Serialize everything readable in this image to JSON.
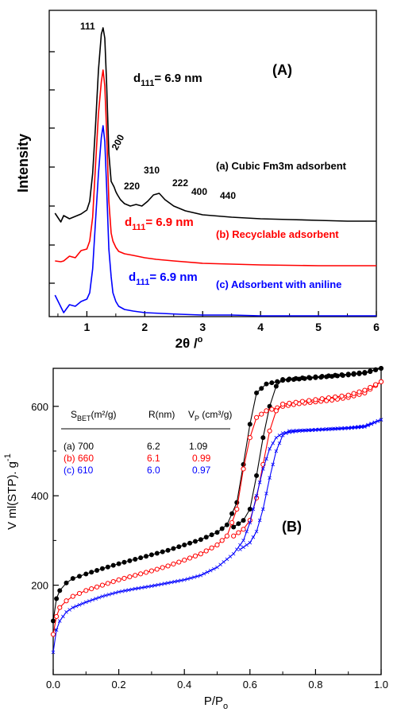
{
  "chart_data": [
    {
      "type": "line",
      "panel_label": "(A)",
      "xlabel": "2θ /",
      "xlabel_sup": "o",
      "ylabel": "Intensity",
      "xlim": [
        0.35,
        6
      ],
      "xticks": [
        "1",
        "2",
        "3",
        "4",
        "5",
        "6"
      ],
      "yaxis_tick_labels": false,
      "series": [
        {
          "name": "(a) Cubic Fm3m adsorbent",
          "color": "#000000",
          "x": [
            0.45,
            0.55,
            0.6,
            0.7,
            0.8,
            0.9,
            1.0,
            1.05,
            1.1,
            1.15,
            1.2,
            1.25,
            1.28,
            1.31,
            1.34,
            1.38,
            1.42,
            1.47,
            1.5,
            1.53,
            1.58,
            1.65,
            1.75,
            1.85,
            1.95,
            2.05,
            2.15,
            2.25,
            2.35,
            2.5,
            2.7,
            3.0,
            3.5,
            4.0,
            4.5,
            5.0,
            5.5,
            6.0
          ],
          "y": [
            255,
            266,
            258,
            262,
            259,
            256,
            251,
            240,
            205,
            145,
            75,
            30,
            22,
            35,
            90,
            180,
            215,
            222,
            228,
            232,
            238,
            243,
            246,
            244,
            246,
            240,
            232,
            230,
            238,
            246,
            252,
            257,
            260,
            262,
            263,
            264,
            265,
            265
          ]
        },
        {
          "name": "(b) Recyclable adsorbent",
          "color": "#ff0000",
          "x": [
            0.45,
            0.55,
            0.6,
            0.7,
            0.8,
            0.9,
            1.0,
            1.05,
            1.1,
            1.15,
            1.2,
            1.25,
            1.28,
            1.31,
            1.34,
            1.38,
            1.42,
            1.45,
            1.5,
            1.55,
            1.65,
            1.8,
            2.0,
            2.2,
            2.5,
            3.0,
            3.5,
            4.0,
            5.0,
            6.0
          ],
          "y": [
            315,
            316,
            315,
            309,
            311,
            302,
            300,
            290,
            260,
            195,
            130,
            90,
            75,
            95,
            150,
            240,
            280,
            290,
            298,
            303,
            306,
            308,
            311,
            313,
            315,
            318,
            319,
            320,
            321,
            321
          ]
        },
        {
          "name": "(c) Adsorbent with aniline",
          "color": "#0000ff",
          "x": [
            0.45,
            0.6,
            0.7,
            0.8,
            0.9,
            1.0,
            1.05,
            1.1,
            1.15,
            1.2,
            1.25,
            1.28,
            1.31,
            1.34,
            1.38,
            1.42,
            1.45,
            1.5,
            1.55,
            1.65,
            1.8,
            2.0,
            2.3,
            2.6,
            3.0,
            3.5,
            4.0,
            5.0,
            6.0
          ],
          "y": [
            358,
            380,
            370,
            372,
            366,
            363,
            355,
            325,
            265,
            205,
            160,
            145,
            165,
            220,
            300,
            335,
            355,
            366,
            372,
            376,
            378,
            380,
            381,
            382,
            383,
            383,
            384,
            384,
            384
          ]
        }
      ],
      "peak_labels": [
        "111",
        "200",
        "220",
        "310",
        "222",
        "400",
        "440"
      ],
      "d_annotations": [
        {
          "prefix": "d",
          "sub": "111",
          "suffix": "= 6.9 nm",
          "color": "#000000"
        },
        {
          "prefix": "d",
          "sub": "111",
          "suffix": "= 6.9 nm",
          "color": "#ff0000"
        },
        {
          "prefix": "d",
          "sub": "111",
          "suffix": "= 6.9 nm",
          "color": "#0000ff"
        }
      ]
    },
    {
      "type": "line",
      "panel_label": "(B)",
      "xlabel": "P/P",
      "xlabel_sub": "o",
      "ylabel": "V ml(STP). g",
      "ylabel_sup": "-1",
      "xlim": [
        0.0,
        1.0
      ],
      "ylim": [
        0,
        685
      ],
      "xticks": [
        "0.0",
        "0.2",
        "0.4",
        "0.6",
        "0.8",
        "1.0"
      ],
      "xtick_values": [
        0.0,
        0.2,
        0.4,
        0.6,
        0.8,
        1.0
      ],
      "yticks": [
        "200",
        "400",
        "600"
      ],
      "ytick_values": [
        200,
        400,
        600
      ],
      "series": [
        {
          "name": "(a)",
          "color": "#000000",
          "marker": "filled-circle",
          "branches": [
            {
              "x": [
                0.0,
                0.01,
                0.02,
                0.04,
                0.06,
                0.1,
                0.15,
                0.2,
                0.25,
                0.3,
                0.35,
                0.4,
                0.45,
                0.5,
                0.53,
                0.56,
                0.58,
                0.6,
                0.62,
                0.65,
                0.7,
                0.75,
                0.8,
                0.85,
                0.9,
                0.95,
                1.0
              ],
              "y": [
                120,
                170,
                188,
                205,
                215,
                225,
                237,
                248,
                258,
                268,
                278,
                290,
                302,
                318,
                335,
                385,
                470,
                560,
                630,
                650,
                658,
                661,
                664,
                667,
                670,
                674,
                685
              ]
            },
            {
              "x": [
                1.0,
                0.95,
                0.9,
                0.8,
                0.7,
                0.68,
                0.66,
                0.64,
                0.62,
                0.6,
                0.58,
                0.55
              ],
              "y": [
                685,
                676,
                672,
                666,
                660,
                645,
                600,
                530,
                445,
                370,
                345,
                330
              ]
            }
          ]
        },
        {
          "name": "(b)",
          "color": "#ff0000",
          "marker": "open-circle",
          "branches": [
            {
              "x": [
                0.0,
                0.01,
                0.02,
                0.04,
                0.06,
                0.1,
                0.15,
                0.2,
                0.25,
                0.3,
                0.35,
                0.4,
                0.45,
                0.5,
                0.53,
                0.56,
                0.58,
                0.6,
                0.62,
                0.65,
                0.7,
                0.75,
                0.8,
                0.85,
                0.9,
                0.95,
                1.0
              ],
              "y": [
                90,
                130,
                150,
                165,
                175,
                188,
                200,
                212,
                222,
                232,
                243,
                256,
                270,
                290,
                310,
                370,
                460,
                530,
                575,
                590,
                600,
                606,
                610,
                614,
                620,
                630,
                655
              ]
            },
            {
              "x": [
                1.0,
                0.95,
                0.9,
                0.8,
                0.7,
                0.68,
                0.66,
                0.64,
                0.62,
                0.6,
                0.58,
                0.55
              ],
              "y": [
                655,
                636,
                625,
                615,
                605,
                590,
                545,
                470,
                395,
                345,
                325,
                310
              ]
            }
          ]
        },
        {
          "name": "(c)",
          "color": "#0000ff",
          "marker": "cross",
          "branches": [
            {
              "x": [
                0.0,
                0.01,
                0.02,
                0.04,
                0.06,
                0.1,
                0.15,
                0.2,
                0.25,
                0.3,
                0.35,
                0.4,
                0.45,
                0.5,
                0.55,
                0.58,
                0.6,
                0.62,
                0.64,
                0.66,
                0.68,
                0.7,
                0.75,
                0.8,
                0.85,
                0.9,
                0.95,
                1.0
              ],
              "y": [
                50,
                100,
                120,
                140,
                150,
                162,
                175,
                185,
                192,
                198,
                205,
                212,
                222,
                240,
                270,
                300,
                340,
                400,
                460,
                505,
                530,
                540,
                545,
                547,
                549,
                551,
                554,
                570
              ]
            },
            {
              "x": [
                1.0,
                0.95,
                0.9,
                0.8,
                0.72,
                0.7,
                0.68,
                0.66,
                0.64,
                0.62,
                0.6,
                0.57
              ],
              "y": [
                570,
                556,
                552,
                548,
                545,
                535,
                500,
                440,
                370,
                320,
                295,
                280
              ]
            }
          ]
        }
      ],
      "table": {
        "headers": [
          {
            "main": "S",
            "sub": "BET",
            "tail": "(m²/g)"
          },
          {
            "main": "R(nm)",
            "sub": "",
            "tail": ""
          },
          {
            "main": "V",
            "sub": "P",
            "tail": " (cm³/g)"
          }
        ],
        "rows": [
          {
            "label": "(a) 700",
            "r": "6.2",
            "v": "1.09",
            "color": "#000000"
          },
          {
            "label": "(b)  660",
            "r": "6.1",
            "v": "0.99",
            "color": "#ff0000"
          },
          {
            "label": "(c)  610",
            "r": "6.0",
            "v": "0.97",
            "color": "#0000ff"
          }
        ]
      }
    }
  ]
}
